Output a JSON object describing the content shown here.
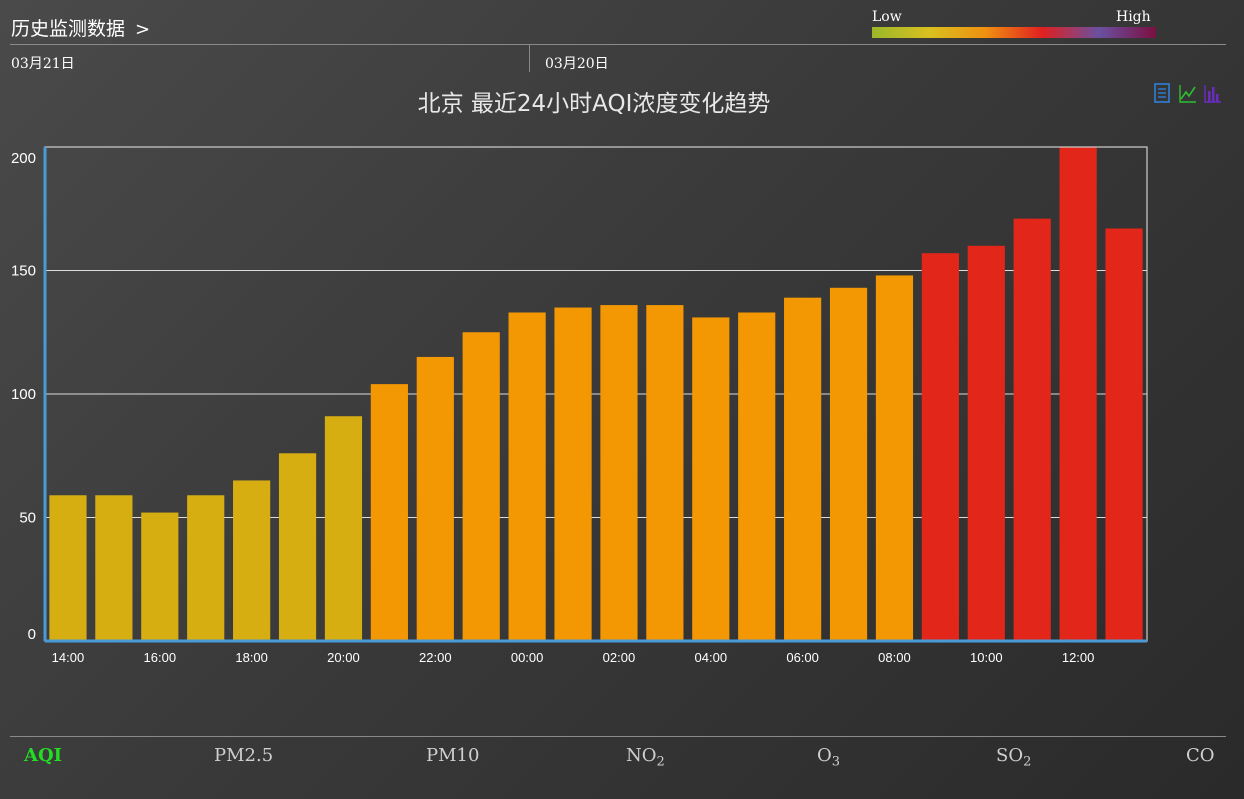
{
  "header": {
    "title": "历史监测数据",
    "chevron": ">"
  },
  "color_legend": {
    "low_label": "Low",
    "high_label": "High",
    "colors": [
      "#9ab82a",
      "#d8c020",
      "#f09010",
      "#e02020",
      "#6a50a0",
      "#7a1040"
    ]
  },
  "dates": [
    {
      "label": "03月21日"
    },
    {
      "label": "03月20日"
    }
  ],
  "view_icons": [
    "table-icon",
    "line-chart-icon",
    "bar-chart-icon"
  ],
  "pollutant_tabs": [
    {
      "label": "AQI",
      "sub": "",
      "active": true
    },
    {
      "label": "PM2.5",
      "sub": ""
    },
    {
      "label": "PM10",
      "sub": ""
    },
    {
      "label": "NO",
      "sub": "2"
    },
    {
      "label": "O",
      "sub": "3"
    },
    {
      "label": "SO",
      "sub": "2"
    },
    {
      "label": "CO",
      "sub": ""
    }
  ],
  "chart_data": {
    "type": "bar",
    "title": "北京 最近24小时AQI浓度变化趋势",
    "categories": [
      "14:00",
      "15:00",
      "16:00",
      "17:00",
      "18:00",
      "19:00",
      "20:00",
      "21:00",
      "22:00",
      "23:00",
      "00:00",
      "01:00",
      "02:00",
      "03:00",
      "04:00",
      "05:00",
      "06:00",
      "07:00",
      "08:00",
      "09:00",
      "10:00",
      "11:00",
      "12:00",
      "13:00"
    ],
    "x_tick_labels": [
      "14:00",
      "",
      "16:00",
      "",
      "18:00",
      "",
      "20:00",
      "",
      "22:00",
      "",
      "00:00",
      "",
      "02:00",
      "",
      "04:00",
      "",
      "06:00",
      "",
      "08:00",
      "",
      "10:00",
      "",
      "12:00",
      ""
    ],
    "values": [
      59,
      59,
      52,
      59,
      65,
      76,
      91,
      104,
      115,
      125,
      133,
      135,
      136,
      136,
      131,
      133,
      139,
      143,
      148,
      157,
      160,
      171,
      200,
      167
    ],
    "colors": [
      "#d6ae12",
      "#d6ae12",
      "#d6ae12",
      "#d6ae12",
      "#d6ae12",
      "#d6ae12",
      "#d6ae12",
      "#f39803",
      "#f39803",
      "#f39803",
      "#f39803",
      "#f39803",
      "#f39803",
      "#f39803",
      "#f39803",
      "#f39803",
      "#f39803",
      "#f39803",
      "#f39803",
      "#e3261a",
      "#e3261a",
      "#e3261a",
      "#e3261a",
      "#e3261a"
    ],
    "ylim": [
      0,
      200
    ],
    "yticks": [
      0,
      50,
      100,
      150,
      200
    ],
    "grid": true,
    "xlabel": "",
    "ylabel": ""
  }
}
